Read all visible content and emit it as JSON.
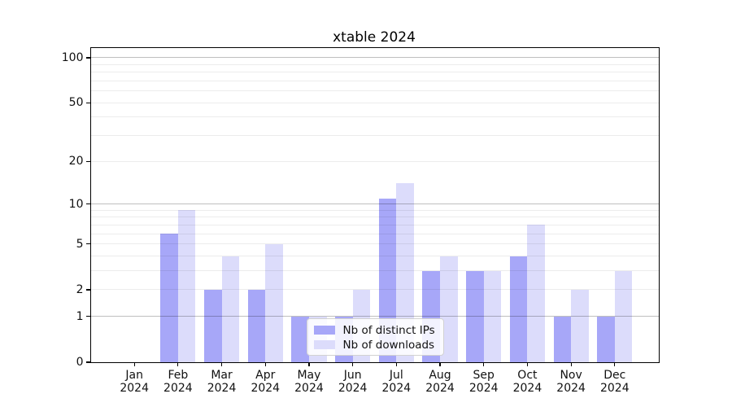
{
  "chart_data": {
    "type": "bar",
    "title": "xtable 2024",
    "categories": [
      "Jan",
      "Feb",
      "Mar",
      "Apr",
      "May",
      "Jun",
      "Jul",
      "Aug",
      "Sep",
      "Oct",
      "Nov",
      "Dec"
    ],
    "x_tick_year": "2024",
    "series": [
      {
        "name": "Nb of distinct IPs",
        "key": "distinct-ips",
        "color": "#a7a7f8",
        "values": [
          0,
          6,
          2,
          2,
          1,
          1,
          11,
          3,
          3,
          4,
          1,
          1
        ]
      },
      {
        "name": "Nb of downloads",
        "key": "downloads",
        "color": "#dcdcfb",
        "values": [
          0,
          9,
          4,
          5,
          1,
          2,
          14,
          4,
          3,
          7,
          2,
          3
        ]
      }
    ],
    "xlabel": "",
    "ylabel": "",
    "yscale": "log1p",
    "yticks": [
      0,
      1,
      2,
      5,
      10,
      20,
      50,
      100
    ],
    "yticks_minor": [
      3,
      4,
      6,
      7,
      8,
      9,
      30,
      40,
      60,
      70,
      80,
      90
    ],
    "ylim": [
      0,
      116
    ],
    "grid": true,
    "legend_position": "inside-bottom-center",
    "colors": {
      "grid_decade": "rgba(0,0,0,0.25)",
      "grid_light": "rgba(0,0,0,0.075)",
      "spine": "#000000",
      "text": "#111111",
      "background": "#ffffff"
    }
  }
}
